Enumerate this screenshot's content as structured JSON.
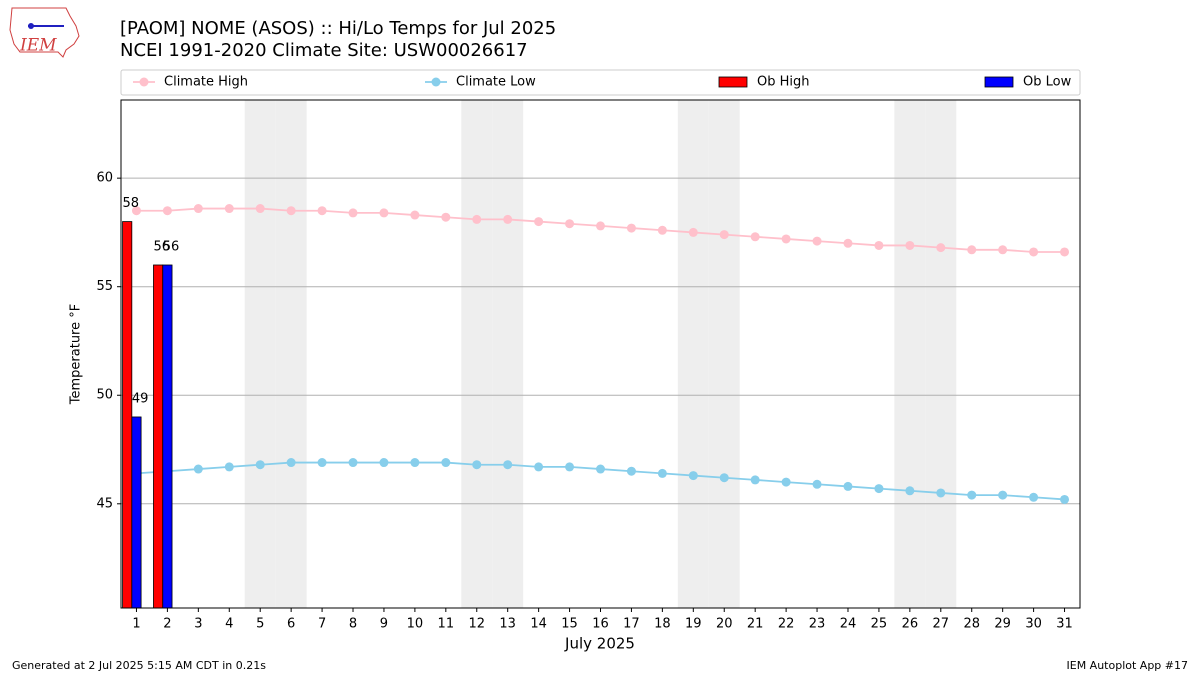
{
  "chart_data": {
    "type": "bar_line",
    "title": "[PAOM] NOME (ASOS) :: Hi/Lo Temps for Jul 2025",
    "subtitle": "NCEI 1991-2020 Climate Site: USW00026617",
    "xlabel": "July 2025",
    "ylabel": "Temperature °F",
    "logo_text": "IEM",
    "footer_left": "Generated at 2 Jul 2025 5:15 AM CDT in 0.21s",
    "footer_right": "IEM Autoplot App #17",
    "x": [
      1,
      2,
      3,
      4,
      5,
      6,
      7,
      8,
      9,
      10,
      11,
      12,
      13,
      14,
      15,
      16,
      17,
      18,
      19,
      20,
      21,
      22,
      23,
      24,
      25,
      26,
      27,
      28,
      29,
      30,
      31
    ],
    "xlim": [
      0.5,
      31.5
    ],
    "xticks": [
      1,
      2,
      3,
      4,
      5,
      6,
      7,
      8,
      9,
      10,
      11,
      12,
      13,
      14,
      15,
      16,
      17,
      18,
      19,
      20,
      21,
      22,
      23,
      24,
      25,
      26,
      27,
      28,
      29,
      30,
      31
    ],
    "ylim": [
      40.2,
      63.6
    ],
    "yticks": [
      45,
      50,
      55,
      60
    ],
    "grid": true,
    "shaded_days": [
      5,
      6,
      12,
      13,
      19,
      20,
      26,
      27
    ],
    "series": [
      {
        "name": "Climate High",
        "type": "line",
        "color": "#ffc0cb",
        "values": [
          58.5,
          58.5,
          58.6,
          58.6,
          58.6,
          58.5,
          58.5,
          58.4,
          58.4,
          58.3,
          58.2,
          58.1,
          58.1,
          58.0,
          57.9,
          57.8,
          57.7,
          57.6,
          57.5,
          57.4,
          57.3,
          57.2,
          57.1,
          57.0,
          56.9,
          56.9,
          56.8,
          56.7,
          56.7,
          56.6,
          56.6
        ]
      },
      {
        "name": "Climate Low",
        "type": "line",
        "color": "#87ceeb",
        "values": [
          46.4,
          46.5,
          46.6,
          46.7,
          46.8,
          46.9,
          46.9,
          46.9,
          46.9,
          46.9,
          46.9,
          46.8,
          46.8,
          46.7,
          46.7,
          46.6,
          46.5,
          46.4,
          46.3,
          46.2,
          46.1,
          46.0,
          45.9,
          45.8,
          45.7,
          45.6,
          45.5,
          45.4,
          45.4,
          45.3,
          45.2
        ]
      },
      {
        "name": "Ob High",
        "type": "bar",
        "color": "#ff0000",
        "values": [
          58,
          56,
          null,
          null,
          null,
          null,
          null,
          null,
          null,
          null,
          null,
          null,
          null,
          null,
          null,
          null,
          null,
          null,
          null,
          null,
          null,
          null,
          null,
          null,
          null,
          null,
          null,
          null,
          null,
          null,
          null
        ]
      },
      {
        "name": "Ob Low",
        "type": "bar",
        "color": "#0000ff",
        "values": [
          49,
          56,
          null,
          null,
          null,
          null,
          null,
          null,
          null,
          null,
          null,
          null,
          null,
          null,
          null,
          null,
          null,
          null,
          null,
          null,
          null,
          null,
          null,
          null,
          null,
          null,
          null,
          null,
          null,
          null,
          null
        ]
      }
    ]
  }
}
